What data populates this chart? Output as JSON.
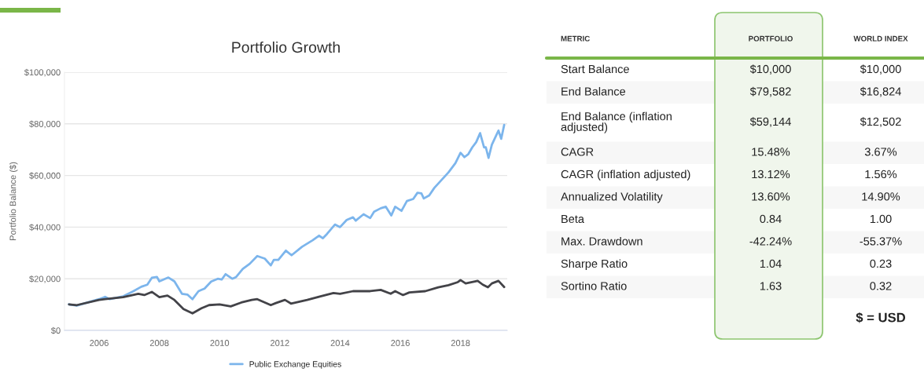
{
  "chart_data": [
    {
      "type": "line",
      "title": "Portfolio Growth",
      "ylabel": "Portfolio Balance ($)",
      "xlim": [
        2004.85,
        2019.55
      ],
      "xticks": [
        2006,
        2008,
        2010,
        2012,
        2014,
        2016,
        2018
      ],
      "ylim": [
        0,
        100000
      ],
      "yticks": [
        {
          "value": 0,
          "label": "$0"
        },
        {
          "value": 20000,
          "label": "$20,000"
        },
        {
          "value": 40000,
          "label": "$40,000"
        },
        {
          "value": 60000,
          "label": "$60,000"
        },
        {
          "value": 80000,
          "label": "$80,000"
        },
        {
          "value": 100000,
          "label": "$100,000"
        }
      ],
      "grid": "y",
      "legend": "bottom",
      "series": [
        {
          "name": "Public Exchange Equities",
          "color": "#7cb5ec",
          "x": [
            2005.0,
            2005.26,
            2006.0,
            2006.2,
            2006.35,
            2006.8,
            2007.14,
            2007.4,
            2007.6,
            2007.75,
            2007.92,
            2008.0,
            2008.3,
            2008.5,
            2008.75,
            2008.93,
            2009.1,
            2009.3,
            2009.5,
            2009.72,
            2009.94,
            2010.07,
            2010.2,
            2010.42,
            2010.55,
            2010.77,
            2011.0,
            2011.25,
            2011.5,
            2011.7,
            2011.8,
            2011.95,
            2012.2,
            2012.39,
            2012.74,
            2013.09,
            2013.3,
            2013.43,
            2013.57,
            2013.83,
            2014.0,
            2014.22,
            2014.43,
            2014.52,
            2014.78,
            2015.0,
            2015.13,
            2015.35,
            2015.52,
            2015.7,
            2015.83,
            2016.04,
            2016.22,
            2016.43,
            2016.57,
            2016.7,
            2016.78,
            2016.96,
            2017.13,
            2017.35,
            2017.6,
            2017.83,
            2018.0,
            2018.13,
            2018.26,
            2018.39,
            2018.52,
            2018.65,
            2018.78,
            2018.84,
            2018.93,
            2019.04,
            2019.26,
            2019.35,
            2019.45
          ],
          "values": [
            10100,
            9600,
            12100,
            13000,
            12100,
            13200,
            15200,
            16900,
            17700,
            20400,
            20700,
            19000,
            20500,
            19000,
            14200,
            13900,
            12100,
            15200,
            16200,
            18900,
            20000,
            19700,
            21800,
            20000,
            20700,
            23800,
            25800,
            28800,
            27800,
            25200,
            27300,
            27300,
            30900,
            29100,
            32400,
            34900,
            36700,
            35700,
            37400,
            41000,
            40000,
            42800,
            43800,
            42500,
            45000,
            43500,
            46000,
            47300,
            47900,
            44500,
            47900,
            46300,
            50100,
            50900,
            53300,
            53100,
            51100,
            52300,
            55200,
            58000,
            61200,
            64800,
            68800,
            67100,
            68300,
            70900,
            72900,
            76400,
            70900,
            70900,
            66800,
            71900,
            77400,
            74200,
            79600
          ]
        },
        {
          "color": "#434348",
          "x": [
            2005.0,
            2005.26,
            2006.0,
            2006.2,
            2006.8,
            2007.3,
            2007.5,
            2007.75,
            2008.0,
            2008.27,
            2008.5,
            2008.8,
            2009.1,
            2009.4,
            2009.65,
            2010.0,
            2010.37,
            2010.72,
            2011.07,
            2011.25,
            2011.7,
            2011.87,
            2012.17,
            2012.37,
            2012.91,
            2013.35,
            2013.78,
            2014.0,
            2014.43,
            2015.0,
            2015.35,
            2015.68,
            2015.83,
            2016.09,
            2016.3,
            2016.83,
            2017.26,
            2017.6,
            2017.91,
            2018.0,
            2018.17,
            2018.57,
            2018.74,
            2018.91,
            2019.04,
            2019.26,
            2019.45
          ],
          "values": [
            10100,
            9800,
            11800,
            12100,
            12900,
            14200,
            13700,
            14900,
            12900,
            13500,
            11800,
            8300,
            6600,
            8600,
            9800,
            10100,
            9300,
            10800,
            11800,
            12100,
            9800,
            10600,
            11800,
            10400,
            11800,
            13200,
            14500,
            14200,
            15200,
            15200,
            15700,
            14200,
            15200,
            13700,
            14700,
            15200,
            16700,
            17500,
            18700,
            19500,
            18200,
            19200,
            17700,
            16700,
            18200,
            19200,
            16800
          ]
        }
      ]
    },
    {
      "type": "other",
      "categories": [
        "METRIC",
        "PORTFOLIO",
        "WORLD INDEX"
      ],
      "y_categories": [
        "Start Balance",
        "End Balance",
        "End Balance (inflation\nadjusted)",
        "CAGR",
        "CAGR (inflation adjusted)",
        "Annualized Volatility",
        "Beta",
        "Max. Drawdown",
        "Sharpe Ratio",
        "Sortino Ratio"
      ],
      "cell_labels": [
        [
          "$10,000",
          "$10,000"
        ],
        [
          "$79,582",
          "$16,824"
        ],
        [
          "$59,144",
          "$12,502"
        ],
        [
          "15.48%",
          "3.67%"
        ],
        [
          "13.12%",
          "1.56%"
        ],
        [
          "13.60%",
          "14.90%"
        ],
        [
          "0.84",
          "1.00"
        ],
        [
          "-42.24%",
          "-55.37%"
        ],
        [
          "1.04",
          "0.23"
        ],
        [
          "1.63",
          "0.32"
        ]
      ],
      "annotations": [
        "$ = USD"
      ]
    }
  ]
}
